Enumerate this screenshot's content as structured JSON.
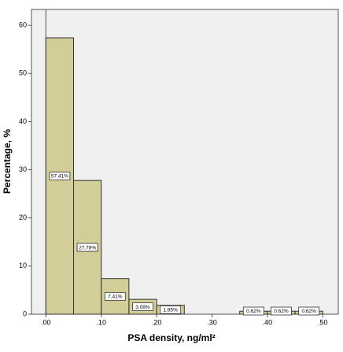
{
  "chart_data": {
    "type": "histogram",
    "xlabel": "PSA density, ng/ml²",
    "ylabel": "Percentage, %",
    "bins": [
      0,
      0.05,
      0.1,
      0.15,
      0.2,
      0.25,
      0.3,
      0.35,
      0.4,
      0.45,
      0.5
    ],
    "values": [
      57.41,
      27.78,
      7.41,
      3.09,
      1.85,
      0,
      0,
      0.62,
      0.62,
      0.62
    ],
    "value_labels": [
      "57.41%",
      "27.78%",
      "7.41%",
      "3.09%",
      "1.85%",
      null,
      null,
      "0.62%",
      "0.62%",
      "0.62%"
    ],
    "color": "#d3ce97",
    "xlim": [
      -0.026,
      0.528
    ],
    "ylim": [
      0,
      63.3
    ],
    "xticks": [
      {
        "value": 0,
        "label": ".00"
      },
      {
        "value": 0.1,
        "label": ".10"
      },
      {
        "value": 0.2,
        "label": ".20"
      },
      {
        "value": 0.3,
        "label": ".30"
      },
      {
        "value": 0.4,
        "label": ".40"
      },
      {
        "value": 0.5,
        "label": ".50"
      }
    ],
    "yticks": [
      0,
      10,
      20,
      30,
      40,
      50,
      60
    ]
  }
}
